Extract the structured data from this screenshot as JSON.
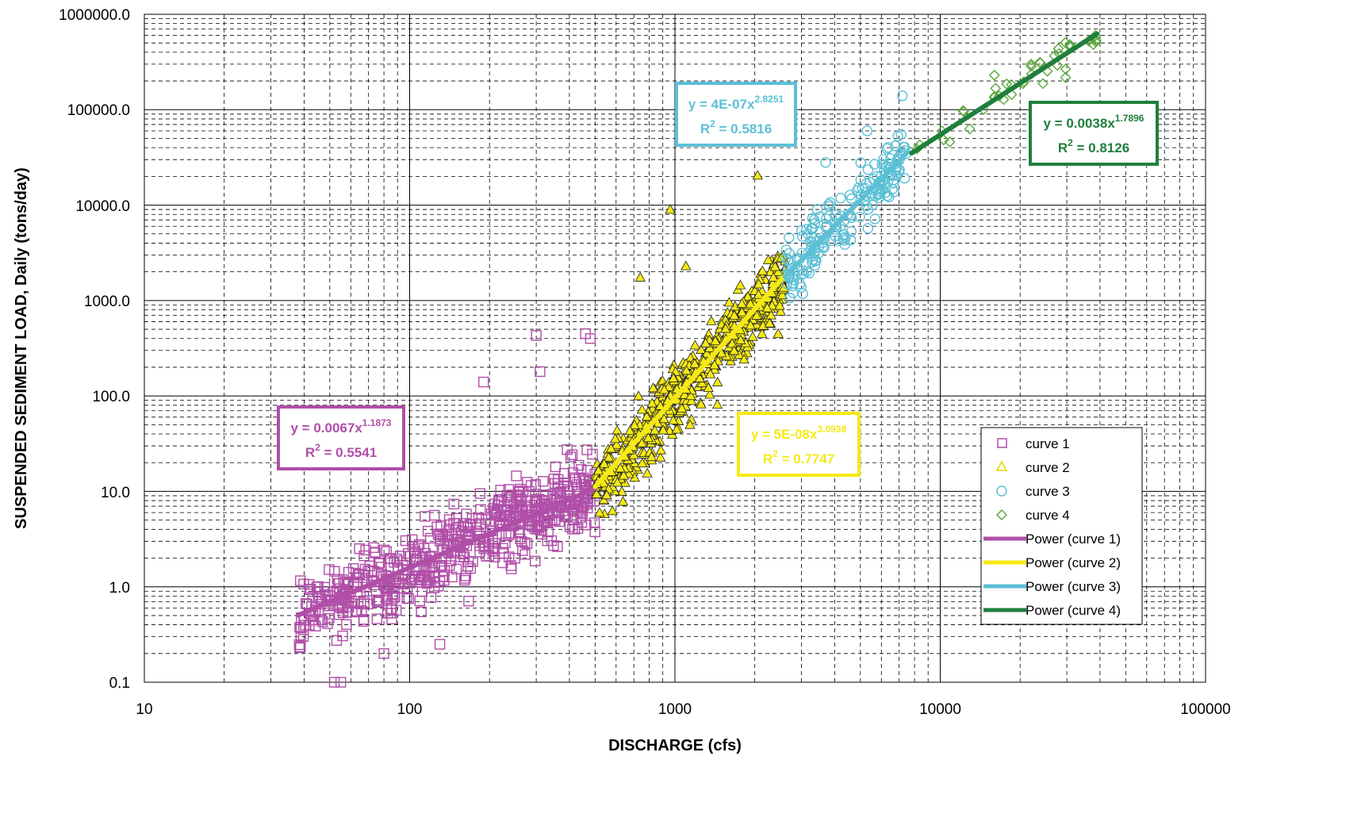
{
  "chart_data": {
    "type": "scatter",
    "xlabel": "DISCHARGE  (cfs)",
    "ylabel": "SUSPENDED SEDIMENT LOAD, Daily  (tons/day)",
    "x_scale": "log",
    "y_scale": "log",
    "xlim": [
      10,
      100000
    ],
    "ylim": [
      0.1,
      1000000
    ],
    "x_ticks": [
      "10",
      "100",
      "1000",
      "10000",
      "100000"
    ],
    "y_ticks": [
      "0.1",
      "1.0",
      "10.0",
      "100.0",
      "1000.0",
      "10000.0",
      "100000.0",
      "1000000.0"
    ],
    "grid": true,
    "legend_position": "bottom-right",
    "series": [
      {
        "name": "curve 1",
        "marker": "square",
        "color": "#b04ea8",
        "x_range": [
          38,
          500
        ],
        "n_points": 600,
        "fit": {
          "a": 0.0067,
          "b": 1.1873,
          "r2": 0.5541
        },
        "scatter_sigma": 0.34,
        "outliers": [
          [
            52,
            0.1
          ],
          [
            55,
            0.1
          ],
          [
            80,
            0.2
          ],
          [
            130,
            0.25
          ],
          [
            190,
            140
          ],
          [
            300,
            430
          ],
          [
            310,
            180
          ],
          [
            460,
            450
          ],
          [
            480,
            400
          ]
        ]
      },
      {
        "name": "curve 2",
        "marker": "triangle",
        "color": "#f5e916",
        "x_range": [
          500,
          2600
        ],
        "n_points": 600,
        "fit": {
          "a": 5e-08,
          "b": 3.0938,
          "r2": 0.7747
        },
        "scatter_sigma": 0.3,
        "outliers": [
          [
            960,
            9000
          ],
          [
            2050,
            20500
          ],
          [
            740,
            1750
          ],
          [
            1100,
            2300
          ],
          [
            2450,
            450
          ],
          [
            520,
            6
          ]
        ]
      },
      {
        "name": "curve 3",
        "marker": "circle",
        "color": "#5bc0d6",
        "x_range": [
          2600,
          7500
        ],
        "n_points": 180,
        "fit": {
          "a": 4e-07,
          "b": 2.8251,
          "r2": 0.5816
        },
        "scatter_sigma": 0.28,
        "outliers": [
          [
            7200,
            140000
          ],
          [
            5300,
            60000
          ],
          [
            3700,
            28000
          ],
          [
            2700,
            1700
          ]
        ]
      },
      {
        "name": "curve 4",
        "marker": "diamond",
        "color": "#5aa83c",
        "x_range": [
          8000,
          39000
        ],
        "n_points": 40,
        "fit": {
          "a": 0.0038,
          "b": 1.7896,
          "r2": 0.8126
        },
        "scatter_sigma": 0.16,
        "outliers": [
          [
            38500,
            600000
          ],
          [
            22000,
            300000
          ],
          [
            16000,
            230000
          ]
        ]
      },
      {
        "name": "Power (curve 1)",
        "line_color": "#b04ea8",
        "x_range": [
          38,
          500
        ],
        "fit_of": "curve 1"
      },
      {
        "name": "Power (curve 2)",
        "line_color": "#f5e916",
        "x_range": [
          500,
          2600
        ],
        "fit_of": "curve 2"
      },
      {
        "name": "Power (curve 3)",
        "line_color": "#5bc0d6",
        "x_range": [
          2600,
          7500
        ],
        "fit_of": "curve 3"
      },
      {
        "name": "Power (curve 4)",
        "line_color": "#1f7f3c",
        "x_range": [
          7800,
          39000
        ],
        "fit_of": "curve 4"
      }
    ],
    "annotations": [
      {
        "equation_base": "y = 0.0067x",
        "exponent": "1.1873",
        "r2_label": "R",
        "r2_sup": "2",
        "r2_value": " = 0.5541",
        "color": "#b04ea8"
      },
      {
        "equation_base": "y = 5E-08x",
        "exponent": "3.0938",
        "r2_label": "R",
        "r2_sup": "2",
        "r2_value": " = 0.7747",
        "color": "#f5e916"
      },
      {
        "equation_base": "y = 4E-07x",
        "exponent": "2.8251",
        "r2_label": "R",
        "r2_sup": "2",
        "r2_value": " = 0.5816",
        "color": "#5bc0d6"
      },
      {
        "equation_base": "y = 0.0038x",
        "exponent": "1.7896",
        "r2_label": "R",
        "r2_sup": "2",
        "r2_value": " = 0.8126",
        "color": "#1f7f3c"
      }
    ]
  }
}
